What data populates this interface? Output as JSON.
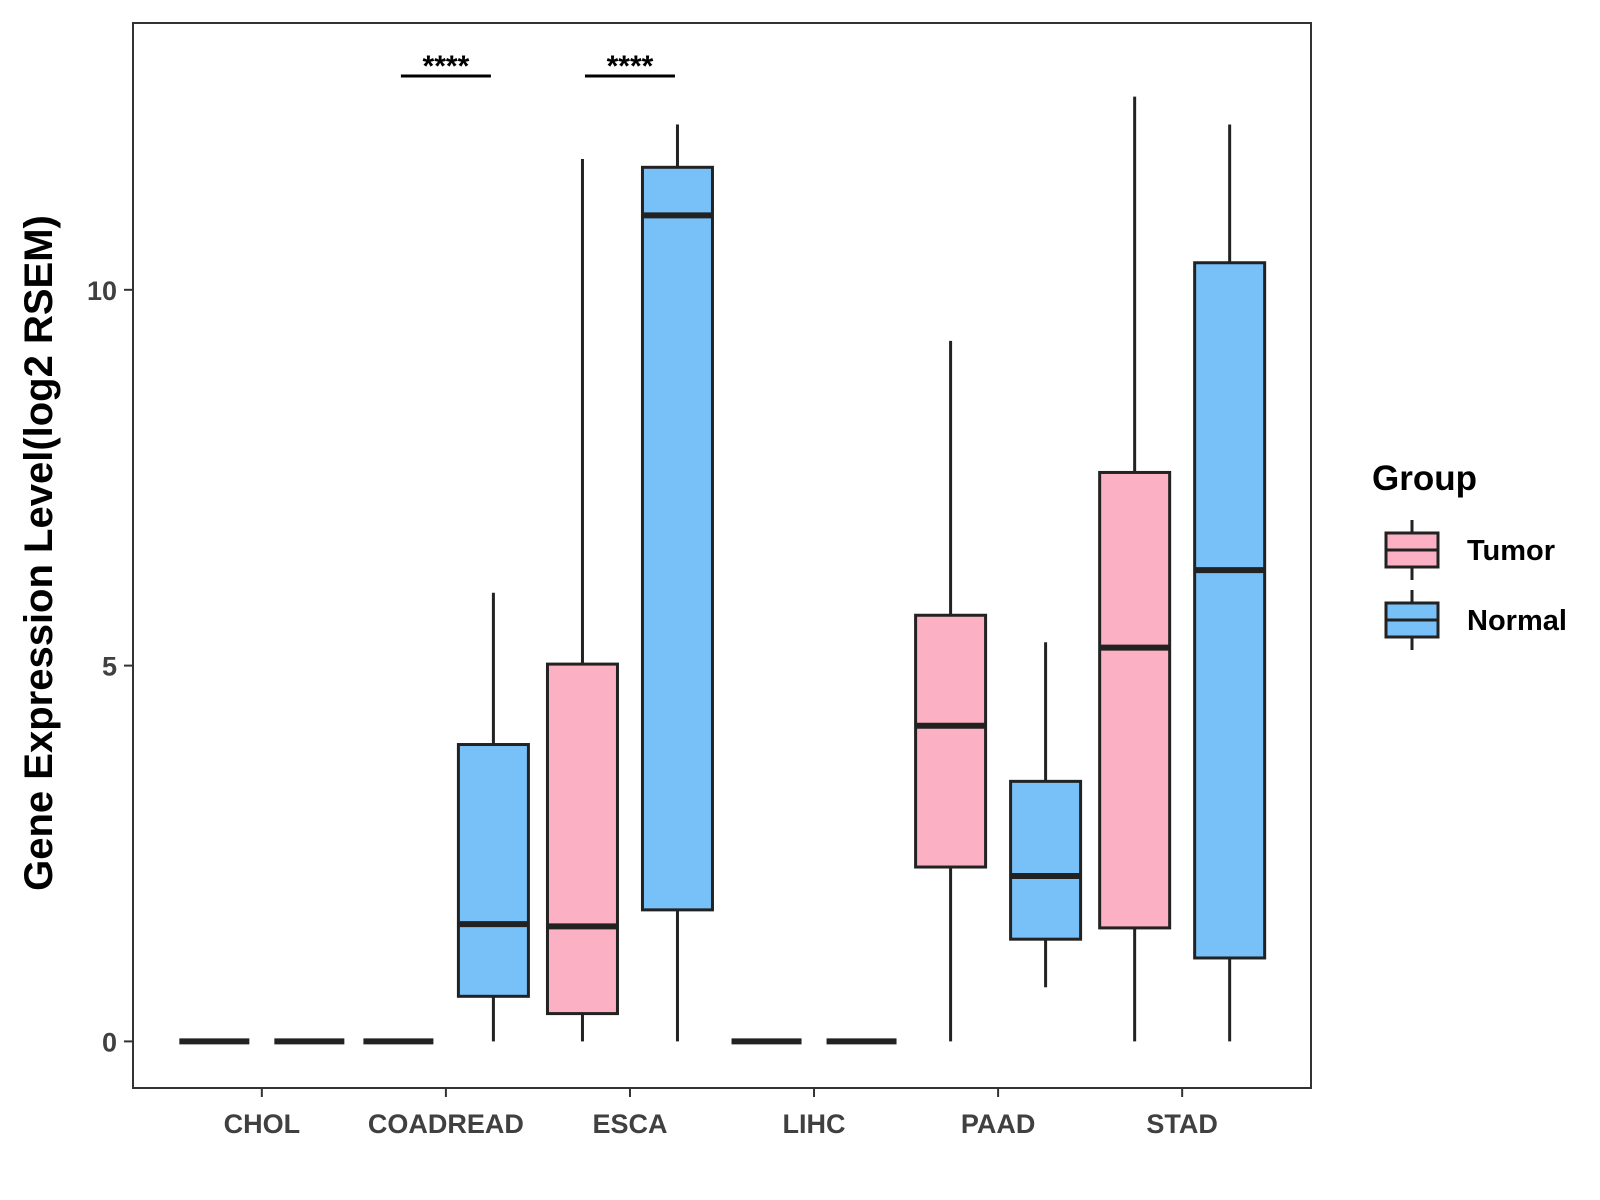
{
  "chart_data": {
    "type": "boxplot",
    "title": "",
    "xlabel": "",
    "ylabel": "Gene Expression Level(log2 RSEM)",
    "ylim": [
      -0.62,
      13.55
    ],
    "yticks": [
      0,
      5,
      10
    ],
    "grid": false,
    "legend": {
      "title": "Group",
      "placement": "right",
      "entries": [
        {
          "name": "Tumor",
          "color": "#FBB1C3"
        },
        {
          "name": "Normal",
          "color": "#78C1F8"
        }
      ]
    },
    "categories": [
      "CHOL",
      "COADREAD",
      "ESCA",
      "LIHC",
      "PAAD",
      "STAD"
    ],
    "series": [
      {
        "name": "Tumor",
        "color": "#FBB1C3",
        "boxes": [
          {
            "category": "CHOL",
            "whisker_low": 0,
            "q1": 0,
            "median": 0,
            "q3": 0,
            "whisker_high": 0
          },
          {
            "category": "COADREAD",
            "whisker_low": 0,
            "q1": 0,
            "median": 0,
            "q3": 0,
            "whisker_high": 0
          },
          {
            "category": "ESCA",
            "whisker_low": 0,
            "q1": 0.37,
            "median": 1.53,
            "q3": 5.02,
            "whisker_high": 11.74
          },
          {
            "category": "LIHC",
            "whisker_low": 0,
            "q1": 0,
            "median": 0,
            "q3": 0,
            "whisker_high": 0
          },
          {
            "category": "PAAD",
            "whisker_low": 0,
            "q1": 2.32,
            "median": 4.2,
            "q3": 5.67,
            "whisker_high": 9.32
          },
          {
            "category": "STAD",
            "whisker_low": 0,
            "q1": 1.51,
            "median": 5.24,
            "q3": 7.57,
            "whisker_high": 12.57
          }
        ]
      },
      {
        "name": "Normal",
        "color": "#78C1F8",
        "boxes": [
          {
            "category": "CHOL",
            "whisker_low": 0,
            "q1": 0,
            "median": 0,
            "q3": 0,
            "whisker_high": 0
          },
          {
            "category": "COADREAD",
            "whisker_low": 0,
            "q1": 0.6,
            "median": 1.56,
            "q3": 3.95,
            "whisker_high": 5.97
          },
          {
            "category": "ESCA",
            "whisker_low": 0,
            "q1": 1.75,
            "median": 10.99,
            "q3": 11.63,
            "whisker_high": 12.2
          },
          {
            "category": "LIHC",
            "whisker_low": 0,
            "q1": 0,
            "median": 0,
            "q3": 0,
            "whisker_high": 0
          },
          {
            "category": "PAAD",
            "whisker_low": 0.72,
            "q1": 1.36,
            "median": 2.2,
            "q3": 3.46,
            "whisker_high": 5.31
          },
          {
            "category": "STAD",
            "whisker_low": 0,
            "q1": 1.11,
            "median": 6.27,
            "q3": 10.36,
            "whisker_high": 12.2
          }
        ]
      }
    ],
    "annotations": [
      {
        "category": "COADREAD",
        "label": "****"
      },
      {
        "category": "ESCA",
        "label": "****"
      }
    ]
  }
}
